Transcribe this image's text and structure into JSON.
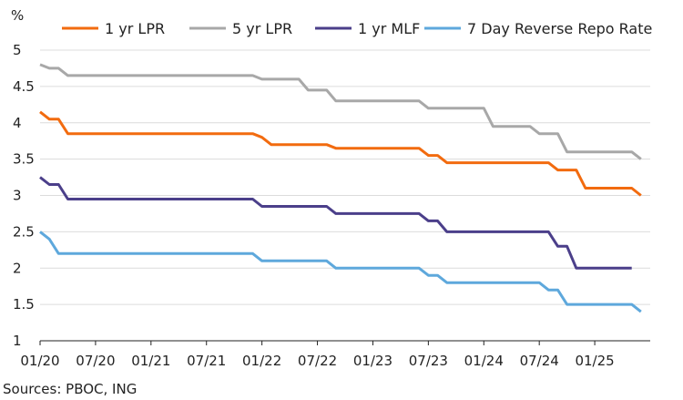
{
  "chart_data": {
    "type": "line",
    "title": "",
    "ylabel": "%",
    "xlabel": "",
    "ylim": [
      1,
      5
    ],
    "yticks": [
      "1",
      "1.5",
      "2",
      "2.5",
      "3",
      "3.5",
      "4",
      "4.5",
      "5"
    ],
    "xticks": [
      "01/20",
      "07/20",
      "01/21",
      "07/21",
      "01/22",
      "07/22",
      "01/23",
      "07/23",
      "01/24",
      "07/24",
      "01/25"
    ],
    "grid": "horizontal",
    "legend_position": "top",
    "series": [
      {
        "name": "1 yr LPR",
        "color": "#f26b0f",
        "points": [
          [
            0,
            4.15
          ],
          [
            1,
            4.05
          ],
          [
            2,
            4.05
          ],
          [
            3,
            3.85
          ],
          [
            23,
            3.85
          ],
          [
            24,
            3.8
          ],
          [
            25,
            3.7
          ],
          [
            31,
            3.7
          ],
          [
            32,
            3.65
          ],
          [
            41,
            3.65
          ],
          [
            42,
            3.55
          ],
          [
            43,
            3.55
          ],
          [
            44,
            3.45
          ],
          [
            55,
            3.45
          ],
          [
            56,
            3.35
          ],
          [
            58,
            3.35
          ],
          [
            59,
            3.1
          ],
          [
            64,
            3.1
          ],
          [
            65,
            3.0
          ]
        ]
      },
      {
        "name": "5 yr LPR",
        "color": "#a8a8a8",
        "points": [
          [
            0,
            4.8
          ],
          [
            1,
            4.75
          ],
          [
            2,
            4.75
          ],
          [
            3,
            4.65
          ],
          [
            23,
            4.65
          ],
          [
            24,
            4.6
          ],
          [
            28,
            4.6
          ],
          [
            29,
            4.45
          ],
          [
            31,
            4.45
          ],
          [
            32,
            4.3
          ],
          [
            41,
            4.3
          ],
          [
            42,
            4.2
          ],
          [
            48,
            4.2
          ],
          [
            49,
            3.95
          ],
          [
            53,
            3.95
          ],
          [
            54,
            3.85
          ],
          [
            55,
            3.85
          ],
          [
            56,
            3.85
          ],
          [
            57,
            3.6
          ],
          [
            64,
            3.6
          ],
          [
            65,
            3.5
          ]
        ]
      },
      {
        "name": "1 yr MLF",
        "color": "#4b3f8a",
        "points": [
          [
            0,
            3.25
          ],
          [
            1,
            3.15
          ],
          [
            2,
            3.15
          ],
          [
            3,
            2.95
          ],
          [
            23,
            2.95
          ],
          [
            24,
            2.85
          ],
          [
            31,
            2.85
          ],
          [
            32,
            2.75
          ],
          [
            41,
            2.75
          ],
          [
            42,
            2.65
          ],
          [
            43,
            2.65
          ],
          [
            44,
            2.5
          ],
          [
            55,
            2.5
          ],
          [
            56,
            2.3
          ],
          [
            57,
            2.3
          ],
          [
            58,
            2.0
          ],
          [
            64,
            2.0
          ]
        ]
      },
      {
        "name": "7 Day Reverse Repo Rate",
        "color": "#5ea8dc",
        "points": [
          [
            0,
            2.5
          ],
          [
            1,
            2.4
          ],
          [
            2,
            2.2
          ],
          [
            23,
            2.2
          ],
          [
            24,
            2.1
          ],
          [
            31,
            2.1
          ],
          [
            32,
            2.0
          ],
          [
            41,
            2.0
          ],
          [
            42,
            1.9
          ],
          [
            43,
            1.9
          ],
          [
            44,
            1.8
          ],
          [
            54,
            1.8
          ],
          [
            55,
            1.7
          ],
          [
            56,
            1.7
          ],
          [
            57,
            1.5
          ],
          [
            64,
            1.5
          ],
          [
            65,
            1.4
          ]
        ]
      }
    ]
  },
  "source": "Sources: PBOC, ING"
}
